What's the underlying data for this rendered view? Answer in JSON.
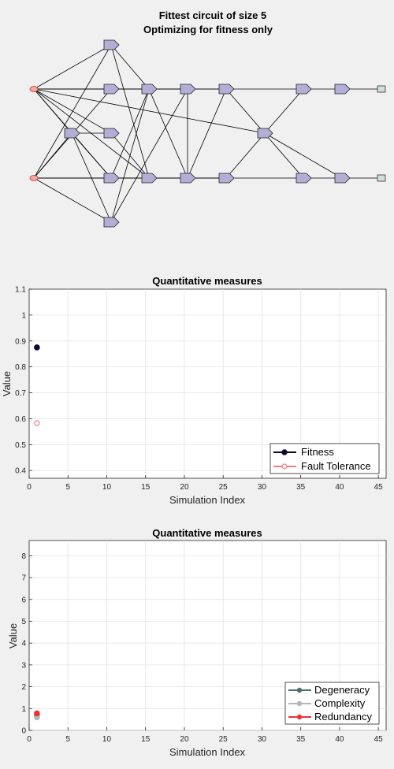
{
  "circuit": {
    "title_line1": "Fittest circuit of size 5",
    "title_line2": "Optimizing for fitness only"
  },
  "chart_data": [
    {
      "type": "scatter",
      "title": "Quantitative measures",
      "xlabel": "Simulation Index",
      "ylabel": "Value",
      "xlim": [
        0,
        46
      ],
      "ylim": [
        0.37,
        1.1
      ],
      "xticks": [
        0,
        5,
        10,
        15,
        20,
        25,
        30,
        35,
        40,
        45
      ],
      "yticks": [
        0.4,
        0.5,
        0.6,
        0.7,
        0.8,
        0.9,
        1,
        1.1
      ],
      "ytick_labels": [
        "0.4",
        "0.5",
        "0.6",
        "0.7",
        "0.8",
        "0.9",
        "1",
        "1.1"
      ],
      "grid": true,
      "legend_position": "bottom-right",
      "series": [
        {
          "name": "Fitness",
          "x": [
            1
          ],
          "y": [
            0.875
          ],
          "color": "#0d0d2b",
          "marker": "filled-circle"
        },
        {
          "name": "Fault Tolerance",
          "x": [
            1
          ],
          "y": [
            0.583
          ],
          "color": "#f08080",
          "marker": "open-circle"
        }
      ]
    },
    {
      "type": "scatter",
      "title": "Quantitative measures",
      "xlabel": "Simulation Index",
      "ylabel": "Value",
      "xlim": [
        0,
        46
      ],
      "ylim": [
        0,
        8.7
      ],
      "xticks": [
        0,
        5,
        10,
        15,
        20,
        25,
        30,
        35,
        40,
        45
      ],
      "yticks": [
        0,
        1,
        2,
        3,
        4,
        5,
        6,
        7,
        8
      ],
      "ytick_labels": [
        "0",
        "1",
        "2",
        "3",
        "4",
        "5",
        "6",
        "7",
        "8"
      ],
      "grid": true,
      "legend_position": "bottom-right",
      "series": [
        {
          "name": "Degeneracy",
          "x": [
            1
          ],
          "y": [
            0.7
          ],
          "color": "#4f6d6d",
          "marker": "filled-circle"
        },
        {
          "name": "Complexity",
          "x": [
            1
          ],
          "y": [
            0.6
          ],
          "color": "#b0b8b8",
          "marker": "filled-circle"
        },
        {
          "name": "Redundancy",
          "x": [
            1
          ],
          "y": [
            0.78
          ],
          "color": "#ee3333",
          "marker": "filled-circle"
        }
      ]
    }
  ]
}
